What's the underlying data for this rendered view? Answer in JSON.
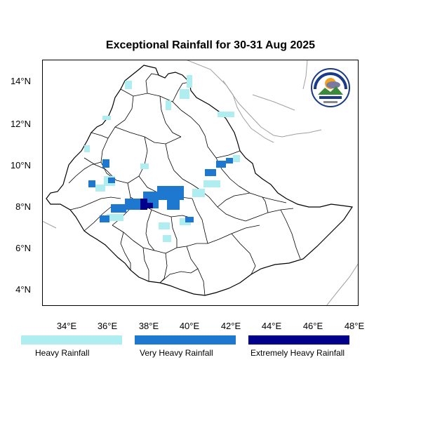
{
  "title": "Exceptional Rainfall for 30-31 Aug 2025",
  "axes": {
    "y_ticks": [
      "14°N",
      "12°N",
      "10°N",
      "8°N",
      "6°N",
      "4°N"
    ],
    "x_ticks": [
      "34°E",
      "36°E",
      "38°E",
      "40°E",
      "42°E",
      "44°E",
      "46°E",
      "48°E"
    ]
  },
  "legend": [
    {
      "label": "Heavy Rainfall",
      "color": "#aeeef0"
    },
    {
      "label": "Very Heavy Rainfall",
      "color": "#1f78d0"
    },
    {
      "label": "Extremely Heavy Rainfall",
      "color": "#00008b"
    }
  ],
  "logo": {
    "text_top": "ETHIOPIAN METEOROLOGY INSTITUTE",
    "icon": "meteorology-institute-logo"
  }
}
